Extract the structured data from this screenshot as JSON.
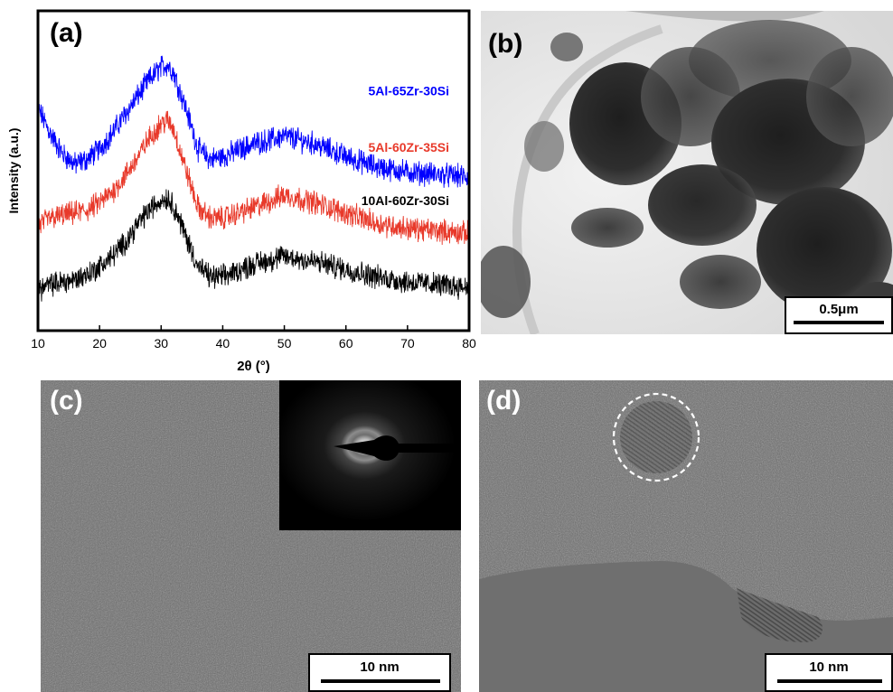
{
  "panels": {
    "a": {
      "label": "(a)"
    },
    "b": {
      "label": "(b)",
      "scale_bar": "0.5μm"
    },
    "c": {
      "label": "(c)",
      "scale_bar": "10 nm"
    },
    "d": {
      "label": "(d)",
      "scale_bar": "10 nm"
    }
  },
  "chart_data": {
    "type": "line",
    "xlabel": "2θ (°)",
    "ylabel": "Intensity (a.u.)",
    "xlim": [
      10,
      80
    ],
    "xticks": [
      10,
      20,
      30,
      40,
      50,
      60,
      70,
      80
    ],
    "y_ticks_shown": false,
    "colors": {
      "5Al-65Zr-30Si": "#0000ff",
      "5Al-60Zr-35Si": "#e8392a",
      "10Al-60Zr-30Si": "#000000"
    },
    "series": [
      {
        "name": "5Al-65Zr-30Si",
        "color": "#0000ff",
        "x": [
          10,
          12,
          14,
          16,
          18,
          20,
          22,
          24,
          26,
          28,
          30,
          31,
          32,
          34,
          36,
          38,
          40,
          45,
          50,
          55,
          60,
          65,
          70,
          75,
          80
        ],
        "y": [
          7.2,
          6.2,
          5.4,
          5.0,
          5.2,
          5.6,
          6.2,
          6.9,
          7.6,
          8.3,
          8.8,
          8.9,
          8.6,
          7.2,
          5.6,
          5.2,
          5.3,
          5.8,
          6.1,
          5.8,
          5.3,
          4.9,
          4.7,
          4.6,
          4.5
        ]
      },
      {
        "name": "5Al-60Zr-35Si",
        "color": "#e8392a",
        "x": [
          10,
          12,
          14,
          16,
          18,
          20,
          22,
          24,
          26,
          28,
          30,
          31,
          32,
          34,
          36,
          38,
          40,
          45,
          50,
          55,
          60,
          65,
          70,
          75,
          80
        ],
        "y": [
          2.6,
          2.9,
          3.0,
          3.1,
          3.2,
          3.5,
          3.9,
          4.5,
          5.2,
          6.0,
          6.6,
          6.7,
          6.4,
          4.8,
          3.3,
          2.9,
          2.9,
          3.3,
          3.8,
          3.5,
          3.1,
          2.7,
          2.5,
          2.4,
          2.3
        ]
      },
      {
        "name": "10Al-60Zr-30Si",
        "color": "#000000",
        "x": [
          10,
          12,
          14,
          16,
          18,
          20,
          22,
          24,
          26,
          28,
          30,
          31,
          32,
          34,
          36,
          38,
          40,
          45,
          50,
          55,
          60,
          65,
          70,
          75,
          80
        ],
        "y": [
          0.1,
          0.3,
          0.4,
          0.5,
          0.7,
          1.0,
          1.4,
          1.9,
          2.6,
          3.2,
          3.6,
          3.7,
          3.4,
          2.2,
          1.0,
          0.6,
          0.6,
          1.1,
          1.4,
          1.2,
          0.9,
          0.6,
          0.4,
          0.3,
          0.2
        ]
      }
    ]
  }
}
